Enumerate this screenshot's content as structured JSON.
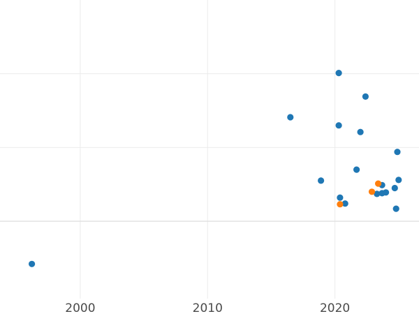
{
  "chart_data": {
    "type": "scatter",
    "title": "",
    "xlabel": "",
    "ylabel": "",
    "xlim": [
      1993.7,
      2026.6
    ],
    "x_ticks": [
      {
        "value": 2000,
        "label": "2000"
      },
      {
        "value": 2010,
        "label": "2010"
      },
      {
        "value": 2020,
        "label": "2020"
      }
    ],
    "y_gridlines": [
      1,
      2,
      3
    ],
    "ylim": [
      -0.05,
      4.0
    ],
    "grid": true,
    "colors": {
      "blue": "#1f77b4",
      "orange": "#ff7f0e"
    },
    "series": [
      {
        "color": "blue",
        "points": [
          {
            "x": 1996.2,
            "y": 0.42
          },
          {
            "x": 2016.5,
            "y": 2.41
          },
          {
            "x": 2018.9,
            "y": 1.55
          },
          {
            "x": 2020.3,
            "y": 3.01
          },
          {
            "x": 2020.3,
            "y": 2.3
          },
          {
            "x": 2020.4,
            "y": 1.32
          },
          {
            "x": 2020.8,
            "y": 1.24
          },
          {
            "x": 2021.7,
            "y": 1.7
          },
          {
            "x": 2022.0,
            "y": 2.21
          },
          {
            "x": 2022.4,
            "y": 2.69
          },
          {
            "x": 2023.3,
            "y": 1.37
          },
          {
            "x": 2023.7,
            "y": 1.49
          },
          {
            "x": 2023.7,
            "y": 1.38
          },
          {
            "x": 2024.0,
            "y": 1.39
          },
          {
            "x": 2024.7,
            "y": 1.45
          },
          {
            "x": 2024.8,
            "y": 1.17
          },
          {
            "x": 2024.9,
            "y": 1.94
          },
          {
            "x": 2025.0,
            "y": 1.56
          }
        ]
      },
      {
        "color": "orange",
        "points": [
          {
            "x": 2020.4,
            "y": 1.23
          },
          {
            "x": 2022.9,
            "y": 1.4
          },
          {
            "x": 2023.4,
            "y": 1.51
          }
        ]
      }
    ]
  }
}
